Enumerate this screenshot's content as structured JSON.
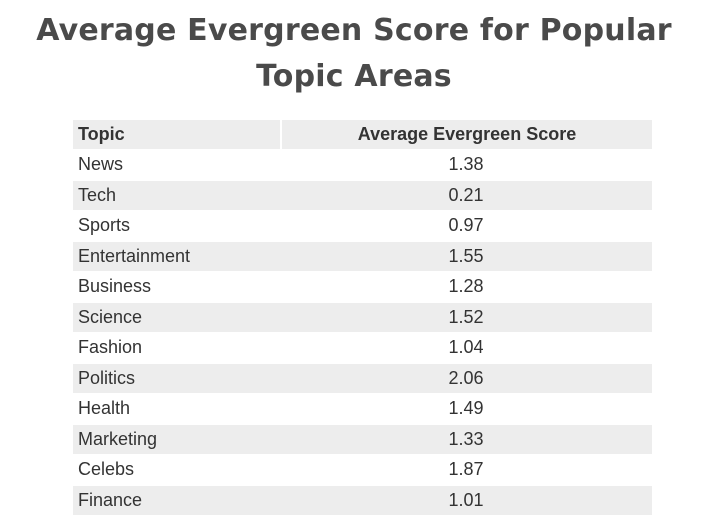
{
  "chart_data": {
    "type": "table",
    "title": "Average Evergreen Score for Popular Topic Areas",
    "columns": [
      "Topic",
      "Average Evergreen Score"
    ],
    "rows": [
      {
        "topic": "News",
        "score": "1.38"
      },
      {
        "topic": "Tech",
        "score": "0.21"
      },
      {
        "topic": "Sports",
        "score": "0.97"
      },
      {
        "topic": "Entertainment",
        "score": "1.55"
      },
      {
        "topic": "Business",
        "score": "1.28"
      },
      {
        "topic": "Science",
        "score": "1.52"
      },
      {
        "topic": "Fashion",
        "score": "1.04"
      },
      {
        "topic": "Politics",
        "score": "2.06"
      },
      {
        "topic": "Health",
        "score": "1.49"
      },
      {
        "topic": "Marketing",
        "score": "1.33"
      },
      {
        "topic": "Celebs",
        "score": "1.87"
      },
      {
        "topic": "Finance",
        "score": "1.01"
      }
    ]
  },
  "colors": {
    "title_text": "#4a4a4a",
    "body_text": "#333333",
    "stripe": "#ededed",
    "background": "#ffffff"
  }
}
